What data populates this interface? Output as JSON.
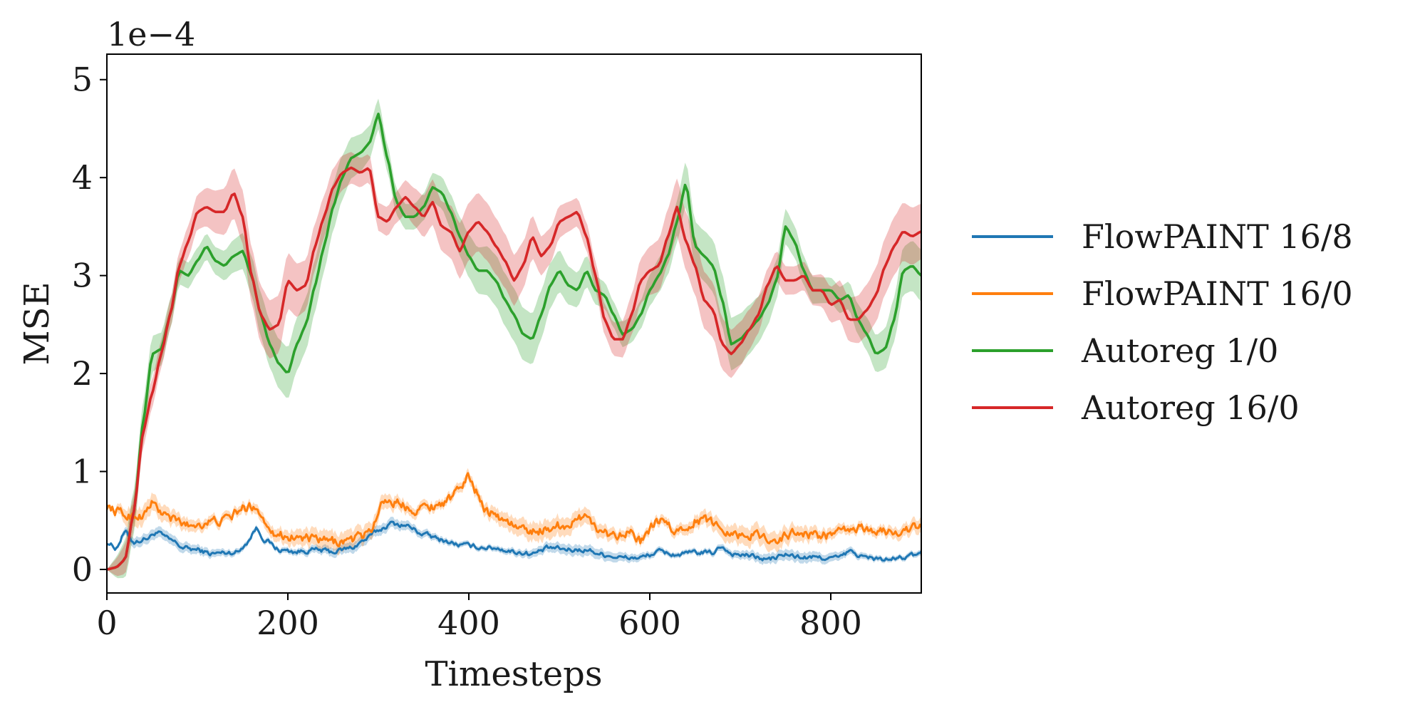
{
  "chart_data": {
    "type": "line",
    "title": "",
    "xlabel": "Timesteps",
    "ylabel": "MSE",
    "y_scale_label": "1e−4",
    "xlim": [
      0,
      900
    ],
    "ylim": [
      -0.24,
      5.26
    ],
    "xticks": [
      0,
      200,
      400,
      600,
      800
    ],
    "yticks": [
      0,
      1,
      2,
      3,
      4,
      5
    ],
    "grid": false,
    "legend_position": "right outside",
    "series": [
      {
        "name": "FlowPAINT 16/8",
        "color": "#1f77b4",
        "noise": 0.025,
        "band": 0.04,
        "x": [
          0,
          10,
          20,
          30,
          45,
          55,
          70,
          85,
          100,
          115,
          130,
          145,
          155,
          165,
          175,
          190,
          210,
          230,
          250,
          270,
          285,
          300,
          315,
          330,
          350,
          370,
          390,
          410,
          430,
          450,
          470,
          490,
          510,
          530,
          550,
          570,
          590,
          610,
          630,
          650,
          670,
          680,
          690,
          710,
          730,
          750,
          770,
          790,
          810,
          820,
          840,
          860,
          880,
          900
        ],
        "y": [
          0.28,
          0.22,
          0.38,
          0.28,
          0.32,
          0.38,
          0.3,
          0.22,
          0.2,
          0.16,
          0.17,
          0.18,
          0.28,
          0.42,
          0.3,
          0.2,
          0.18,
          0.2,
          0.18,
          0.22,
          0.3,
          0.4,
          0.47,
          0.45,
          0.36,
          0.3,
          0.25,
          0.23,
          0.22,
          0.18,
          0.16,
          0.22,
          0.2,
          0.2,
          0.15,
          0.12,
          0.12,
          0.18,
          0.15,
          0.17,
          0.17,
          0.24,
          0.16,
          0.14,
          0.1,
          0.15,
          0.12,
          0.12,
          0.12,
          0.18,
          0.12,
          0.1,
          0.12,
          0.16
        ]
      },
      {
        "name": "FlowPAINT 16/0",
        "color": "#ff7f0e",
        "noise": 0.05,
        "band": 0.07,
        "x": [
          0,
          10,
          20,
          30,
          40,
          50,
          60,
          75,
          90,
          110,
          130,
          150,
          165,
          175,
          190,
          210,
          230,
          250,
          270,
          285,
          295,
          305,
          320,
          340,
          360,
          380,
          400,
          410,
          420,
          440,
          460,
          480,
          500,
          520,
          530,
          540,
          560,
          575,
          590,
          610,
          630,
          650,
          665,
          680,
          700,
          720,
          740,
          760,
          780,
          800,
          820,
          840,
          860,
          880,
          900
        ],
        "y": [
          0.65,
          0.6,
          0.55,
          0.55,
          0.55,
          0.68,
          0.58,
          0.5,
          0.45,
          0.48,
          0.5,
          0.62,
          0.65,
          0.48,
          0.35,
          0.33,
          0.3,
          0.28,
          0.3,
          0.35,
          0.45,
          0.72,
          0.68,
          0.62,
          0.65,
          0.72,
          0.95,
          0.78,
          0.6,
          0.5,
          0.4,
          0.4,
          0.45,
          0.48,
          0.6,
          0.42,
          0.35,
          0.4,
          0.28,
          0.5,
          0.38,
          0.5,
          0.5,
          0.42,
          0.35,
          0.35,
          0.3,
          0.38,
          0.35,
          0.35,
          0.4,
          0.42,
          0.38,
          0.4,
          0.44
        ]
      },
      {
        "name": "Autoreg 1/0",
        "color": "#2ca02c",
        "noise": 0,
        "band": 0.2,
        "x": [
          0,
          10,
          20,
          30,
          40,
          50,
          60,
          70,
          80,
          90,
          100,
          110,
          120,
          130,
          140,
          150,
          160,
          170,
          180,
          190,
          200,
          210,
          220,
          230,
          240,
          250,
          260,
          270,
          280,
          290,
          300,
          310,
          320,
          330,
          340,
          350,
          360,
          370,
          380,
          390,
          400,
          410,
          420,
          430,
          440,
          450,
          460,
          470,
          480,
          490,
          500,
          510,
          520,
          530,
          540,
          550,
          560,
          570,
          580,
          590,
          600,
          610,
          620,
          630,
          640,
          650,
          660,
          670,
          680,
          690,
          700,
          710,
          720,
          730,
          740,
          750,
          760,
          770,
          780,
          790,
          800,
          810,
          820,
          830,
          840,
          850,
          860,
          870,
          880,
          890,
          900
        ],
        "y": [
          0.0,
          0.02,
          0.1,
          0.6,
          1.5,
          2.2,
          2.25,
          2.6,
          3.05,
          3.0,
          3.15,
          3.3,
          3.15,
          3.1,
          3.2,
          3.25,
          3.0,
          2.6,
          2.3,
          2.1,
          2.0,
          2.3,
          2.5,
          2.9,
          3.3,
          3.7,
          4.0,
          4.2,
          4.25,
          4.35,
          4.65,
          4.2,
          3.75,
          3.6,
          3.6,
          3.7,
          3.9,
          3.85,
          3.65,
          3.4,
          3.2,
          3.05,
          3.05,
          2.95,
          2.75,
          2.6,
          2.4,
          2.35,
          2.6,
          2.9,
          3.05,
          2.9,
          2.85,
          3.05,
          2.85,
          2.8,
          2.6,
          2.4,
          2.45,
          2.6,
          2.85,
          3.0,
          3.2,
          3.55,
          3.95,
          3.3,
          3.2,
          3.1,
          2.75,
          2.3,
          2.35,
          2.45,
          2.55,
          2.7,
          2.95,
          3.5,
          3.35,
          3.05,
          2.85,
          2.85,
          2.85,
          2.75,
          2.8,
          2.55,
          2.4,
          2.2,
          2.25,
          2.55,
          3.05,
          3.1,
          3.0
        ]
      },
      {
        "name": "Autoreg 16/0",
        "color": "#d62728",
        "noise": 0,
        "band": 0.22,
        "x": [
          0,
          10,
          20,
          30,
          40,
          50,
          60,
          70,
          80,
          90,
          100,
          110,
          120,
          130,
          140,
          150,
          160,
          170,
          180,
          190,
          200,
          210,
          220,
          230,
          240,
          250,
          260,
          270,
          280,
          290,
          300,
          310,
          320,
          330,
          340,
          350,
          360,
          370,
          380,
          390,
          400,
          410,
          420,
          430,
          440,
          450,
          460,
          470,
          480,
          490,
          500,
          510,
          520,
          530,
          540,
          550,
          560,
          570,
          580,
          590,
          600,
          610,
          620,
          630,
          640,
          650,
          660,
          670,
          680,
          690,
          700,
          710,
          720,
          730,
          740,
          750,
          760,
          770,
          780,
          790,
          800,
          810,
          820,
          830,
          840,
          850,
          860,
          870,
          880,
          890,
          900
        ],
        "y": [
          0.0,
          0.02,
          0.1,
          0.6,
          1.4,
          1.8,
          2.2,
          2.6,
          3.1,
          3.35,
          3.65,
          3.7,
          3.65,
          3.65,
          3.85,
          3.6,
          3.0,
          2.6,
          2.45,
          2.5,
          2.95,
          2.85,
          2.9,
          3.3,
          3.6,
          3.9,
          4.05,
          4.1,
          4.05,
          4.1,
          3.6,
          3.55,
          3.7,
          3.8,
          3.7,
          3.6,
          3.75,
          3.5,
          3.45,
          3.25,
          3.45,
          3.55,
          3.45,
          3.3,
          3.15,
          2.95,
          3.1,
          3.4,
          3.2,
          3.3,
          3.55,
          3.6,
          3.65,
          3.4,
          3.0,
          2.55,
          2.35,
          2.35,
          2.6,
          2.95,
          3.05,
          3.1,
          3.4,
          3.7,
          3.35,
          3.1,
          2.75,
          2.65,
          2.3,
          2.2,
          2.3,
          2.45,
          2.6,
          2.9,
          3.1,
          2.95,
          2.95,
          3.0,
          2.85,
          2.85,
          2.7,
          2.75,
          2.55,
          2.55,
          2.65,
          2.8,
          3.1,
          3.3,
          3.45,
          3.4,
          3.45
        ]
      }
    ]
  }
}
